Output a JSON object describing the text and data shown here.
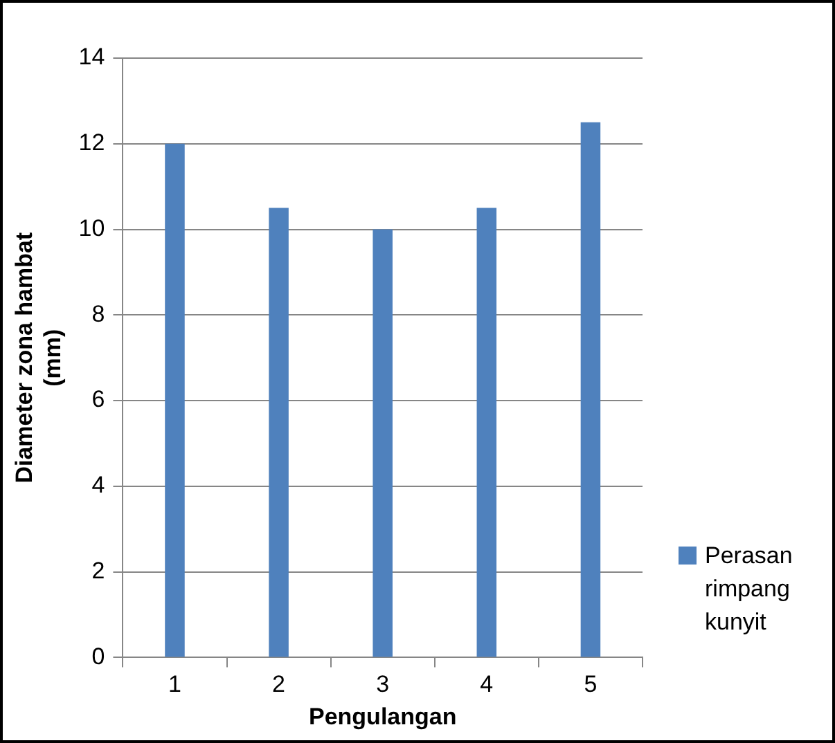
{
  "chart_data": {
    "type": "bar",
    "xlabel": "Pengulangan",
    "ylabel": "Diameter zona hambat (mm)",
    "categories": [
      "1",
      "2",
      "3",
      "4",
      "5"
    ],
    "series": [
      {
        "name": "Perasan rimpang kunyit",
        "color": "#4f81bd",
        "values": [
          12,
          10.5,
          10,
          10.5,
          12.5
        ]
      }
    ],
    "ylim": [
      0,
      14
    ],
    "yticks": [
      0,
      2,
      4,
      6,
      8,
      10,
      12,
      14
    ],
    "grid": "y",
    "legend": "right"
  }
}
